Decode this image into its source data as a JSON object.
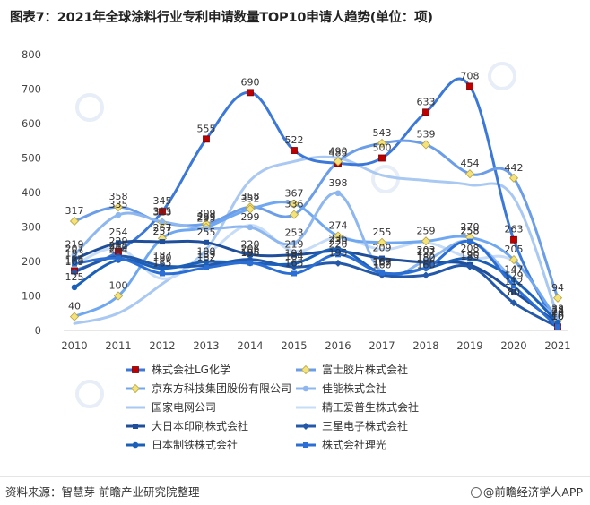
{
  "title": "图表7：2021年全球涂料行业专利申请数量TOP10申请人趋势(单位：项)",
  "footer": {
    "source": "资料来源：智慧芽 前瞻产业研究院整理",
    "brand": "@前瞻经济学人APP"
  },
  "chart_data": {
    "type": "line",
    "title": "图表7：2021年全球涂料行业专利申请数量TOP10申请人趋势(单位：项)",
    "xlabel": "",
    "ylabel": "",
    "x": [
      "2010",
      "2011",
      "2012",
      "2013",
      "2014",
      "2015",
      "2016",
      "2017",
      "2018",
      "2019",
      "2020",
      "2021"
    ],
    "ylim": [
      0,
      800
    ],
    "yticks": [
      0,
      100,
      200,
      300,
      400,
      500,
      600,
      700,
      800
    ],
    "grid": false,
    "legend_position": "bottom",
    "series": [
      {
        "name": "株式会社LG化学",
        "color": "#3b78d8",
        "marker": "square-red",
        "labeled": true,
        "values": [
          173,
          229,
          345,
          555,
          690,
          522,
          485,
          500,
          633,
          708,
          263,
          10
        ]
      },
      {
        "name": "富士胶片株式会社",
        "color": "#6b9de8",
        "marker": "diamond-yellow",
        "labeled": true,
        "values": [
          317,
          358,
          313,
          309,
          358,
          336,
          490,
          543,
          539,
          454,
          442,
          94
        ]
      },
      {
        "name": "京东方科技集团股份有限公司",
        "color": "#6fa8f0",
        "marker": "diamond-yellow",
        "labeled": true,
        "values": [
          40,
          100,
          267,
          299,
          352,
          367,
          274,
          255,
          259,
          270,
          205,
          28
        ]
      },
      {
        "name": "佳能株式会社",
        "color": "#8db7ee",
        "marker": "circle",
        "labeled": true,
        "values": [
          219,
          335,
          315,
          295,
          299,
          253,
          398,
          169,
          203,
          258,
          147,
          33
        ]
      },
      {
        "name": "国家电网公司",
        "color": "#a9c9f2",
        "marker": "none",
        "labeled": false,
        "values": [
          20,
          50,
          135,
          235,
          435,
          490,
          500,
          450,
          435,
          422,
          385,
          40
        ]
      },
      {
        "name": "精工爱普生株式会社",
        "color": "#c6dcf7",
        "marker": "none",
        "labeled": false,
        "values": [
          190,
          238,
          150,
          220,
          305,
          230,
          270,
          235,
          255,
          210,
          200,
          25
        ]
      },
      {
        "name": "大日本印刷株式会社",
        "color": "#1f4e9a",
        "marker": "square",
        "labeled": true,
        "values": [
          207,
          254,
          257,
          255,
          220,
          219,
          230,
          209,
          197,
          190,
          112,
          20
        ]
      },
      {
        "name": "三星电子株式会社",
        "color": "#2458a8",
        "marker": "diamond",
        "labeled": true,
        "values": [
          169,
          215,
          187,
          189,
          206,
          184,
          195,
          160,
          160,
          185,
          80,
          10
        ]
      },
      {
        "name": "日本制铁株式会社",
        "color": "#1a5fb8",
        "marker": "circle",
        "labeled": true,
        "values": [
          125,
          204,
          180,
          199,
          195,
          194,
          236,
          167,
          180,
          208,
          147,
          23
        ]
      },
      {
        "name": "株式会社理光",
        "color": "#2c6fd4",
        "marker": "square",
        "labeled": true,
        "values": [
          193,
          209,
          165,
          182,
          196,
          165,
          220,
          167,
          182,
          258,
          129,
          10
        ]
      }
    ]
  }
}
